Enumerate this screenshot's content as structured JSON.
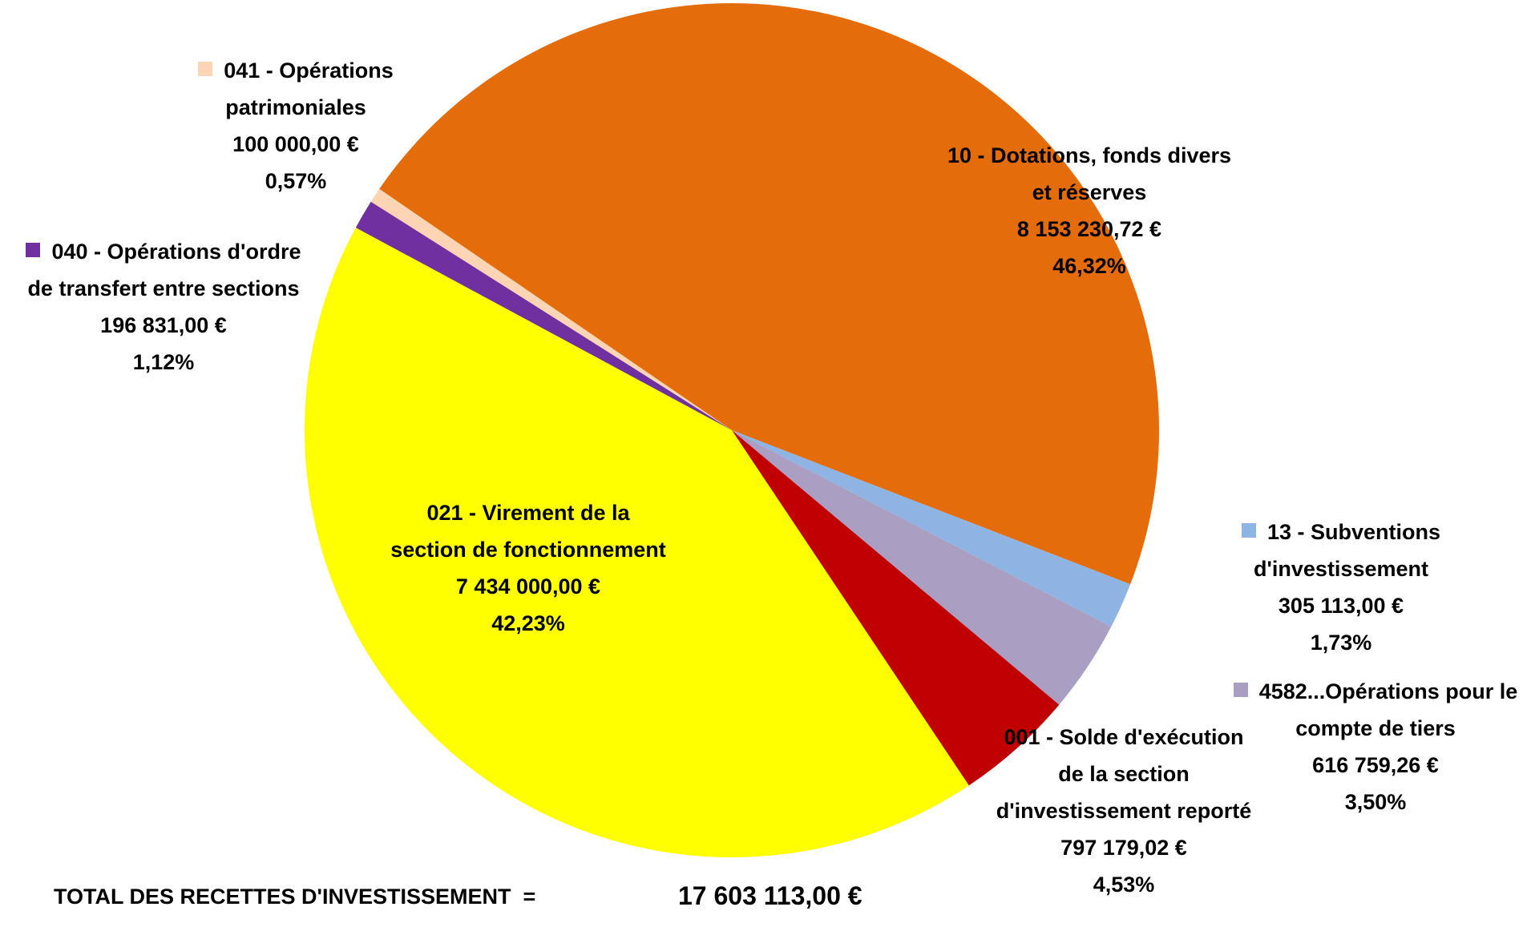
{
  "chart_data": {
    "type": "pie",
    "categories": [
      "10 - Dotations, fonds divers et réserves",
      "13 - Subventions d'investissement",
      "4582...Opérations pour le compte de tiers",
      "001 - Solde d'exécution de la section d'investissement reporté",
      "021 - Virement de la section de fonctionnement",
      "040 - Opérations d'ordre de transfert entre sections",
      "041 - Opérations patrimoniales"
    ],
    "values": [
      8153230.72,
      305113,
      616759.26,
      797179.02,
      7434000,
      196831,
      100000
    ],
    "value_labels": [
      "8 153 230,72 €",
      "305 113,00 €",
      "616 759,26 €",
      "797 179,02 €",
      "7 434 000,00 €",
      "196 831,00 €",
      "100 000,00 €"
    ],
    "percentages": [
      46.32,
      1.73,
      3.5,
      4.53,
      42.23,
      1.12,
      0.57
    ],
    "percentage_labels": [
      "46,32%",
      "1,73%",
      "3,50%",
      "4,53%",
      "42,23%",
      "1,12%",
      "0,57%"
    ],
    "colors": [
      "#e46c0a",
      "#8eb4e3",
      "#aa9fc3",
      "#c00000",
      "#ffff00",
      "#7030a0",
      "#fcd5b5"
    ],
    "total_label": "TOTAL DES RECETTES D'INVESTISSEMENT  =",
    "total_value_label": "17 603 113,00 €"
  }
}
